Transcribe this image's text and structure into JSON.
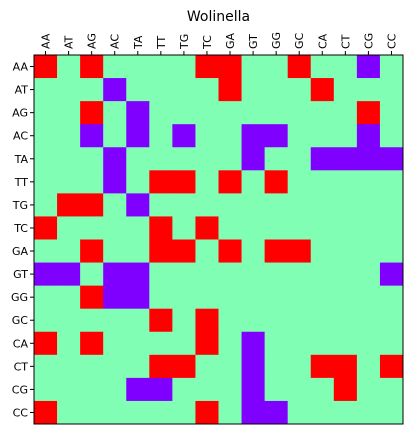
{
  "chart_data": {
    "type": "heatmap",
    "title": "Wolinella",
    "xlabel": "",
    "ylabel": "",
    "x_labels": [
      "AA",
      "AT",
      "AG",
      "AC",
      "TA",
      "TT",
      "TG",
      "TC",
      "GA",
      "GT",
      "GG",
      "GC",
      "CA",
      "CT",
      "CG",
      "CC"
    ],
    "y_labels": [
      "AA",
      "AT",
      "AG",
      "AC",
      "TA",
      "TT",
      "TG",
      "TC",
      "GA",
      "GT",
      "GG",
      "GC",
      "CA",
      "CT",
      "CG",
      "CC"
    ],
    "x_axis_position": "top",
    "colormap": "rainbow",
    "grid": false,
    "legend": false,
    "value_range": [
      0,
      2
    ],
    "colors": {
      "0": "#8000ff",
      "1": "#80ffb4",
      "2": "#ff0000"
    },
    "matrix": [
      [
        2,
        1,
        2,
        1,
        1,
        1,
        1,
        2,
        2,
        1,
        1,
        2,
        1,
        1,
        0,
        1
      ],
      [
        1,
        1,
        1,
        0,
        1,
        1,
        1,
        1,
        2,
        1,
        1,
        1,
        2,
        1,
        1,
        1
      ],
      [
        1,
        1,
        2,
        1,
        0,
        1,
        1,
        1,
        1,
        1,
        1,
        1,
        1,
        1,
        2,
        1
      ],
      [
        1,
        1,
        0,
        1,
        0,
        1,
        0,
        1,
        1,
        0,
        0,
        1,
        1,
        1,
        0,
        1
      ],
      [
        1,
        1,
        1,
        0,
        1,
        1,
        1,
        1,
        1,
        0,
        1,
        1,
        0,
        0,
        0,
        0
      ],
      [
        1,
        1,
        1,
        0,
        1,
        2,
        2,
        1,
        2,
        1,
        2,
        1,
        1,
        1,
        1,
        1
      ],
      [
        1,
        2,
        2,
        1,
        0,
        1,
        1,
        1,
        1,
        1,
        1,
        1,
        1,
        1,
        1,
        1
      ],
      [
        2,
        1,
        1,
        1,
        1,
        2,
        1,
        2,
        1,
        1,
        1,
        1,
        1,
        1,
        1,
        1
      ],
      [
        1,
        1,
        2,
        1,
        1,
        2,
        2,
        1,
        2,
        1,
        2,
        2,
        1,
        1,
        1,
        1
      ],
      [
        0,
        0,
        1,
        0,
        0,
        1,
        1,
        1,
        1,
        1,
        1,
        1,
        1,
        1,
        1,
        0
      ],
      [
        1,
        1,
        2,
        0,
        0,
        1,
        1,
        1,
        1,
        1,
        1,
        1,
        1,
        1,
        1,
        1
      ],
      [
        1,
        1,
        1,
        1,
        1,
        2,
        1,
        2,
        1,
        1,
        1,
        1,
        1,
        1,
        1,
        1
      ],
      [
        2,
        1,
        2,
        1,
        1,
        1,
        1,
        2,
        1,
        0,
        1,
        1,
        1,
        1,
        1,
        1
      ],
      [
        1,
        1,
        1,
        1,
        1,
        2,
        2,
        1,
        1,
        0,
        1,
        1,
        2,
        2,
        1,
        2
      ],
      [
        1,
        1,
        1,
        1,
        0,
        0,
        1,
        1,
        1,
        0,
        1,
        1,
        1,
        2,
        1,
        1
      ],
      [
        2,
        1,
        1,
        1,
        1,
        1,
        1,
        2,
        1,
        0,
        0,
        1,
        1,
        1,
        1,
        1
      ]
    ]
  }
}
